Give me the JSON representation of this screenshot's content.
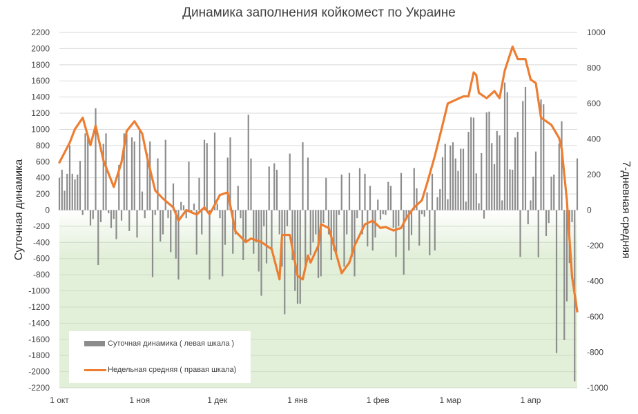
{
  "chart_data": {
    "type": "bar+line",
    "title": "Динамика заполнения койкомест по Украине",
    "ylabel_left": "Суточная динамика",
    "ylabel_right": "7-дневная средняя",
    "ylim_left": [
      -2200,
      2200
    ],
    "ytick_step_left": 200,
    "ylim_right": [
      -1000,
      1000
    ],
    "ytick_step_right": 200,
    "xlim": [
      "10-01",
      "04-19"
    ],
    "x_ticks": [
      {
        "date": "10-01",
        "label": "1 окт"
      },
      {
        "date": "11-01",
        "label": "1 ноя"
      },
      {
        "date": "12-01",
        "label": "1 дек"
      },
      {
        "date": "01-01",
        "label": "1 янв"
      },
      {
        "date": "02-01",
        "label": "1 фев"
      },
      {
        "date": "03-01",
        "label": "1 мар"
      },
      {
        "date": "04-01",
        "label": "1 апр"
      }
    ],
    "grid": true,
    "negative_region_fill": "#e2efd9",
    "legend_position": "bottom-left",
    "series": [
      {
        "name": "Суточная динамика ( левая шкала )",
        "type": "bar",
        "axis": "left",
        "color": "#8c8c8c",
        "start_date": "10-01",
        "values": [
          400,
          500,
          240,
          450,
          800,
          450,
          380,
          440,
          610,
          -60,
          950,
          920,
          -190,
          -110,
          1260,
          -680,
          -150,
          820,
          950,
          -40,
          -220,
          -110,
          -360,
          560,
          -130,
          950,
          940,
          -260,
          900,
          850,
          -340,
          980,
          230,
          -100,
          700,
          850,
          -830,
          -60,
          640,
          -390,
          -300,
          870,
          -100,
          -520,
          330,
          -600,
          -860,
          100,
          60,
          -100,
          600,
          -40,
          80,
          -550,
          400,
          -300,
          870,
          830,
          -860,
          0,
          960,
          80,
          -100,
          -820,
          -430,
          650,
          900,
          -540,
          -300,
          300,
          -100,
          -620,
          -380,
          1180,
          640,
          -540,
          -400,
          -760,
          -1060,
          -200,
          -660,
          540,
          -500,
          580,
          500,
          -300,
          -700,
          -1290,
          -200,
          700,
          -620,
          -1000,
          -1160,
          -1160,
          840,
          -700,
          650,
          -560,
          -400,
          -300,
          -840,
          -820,
          -160,
          400,
          -300,
          -620,
          -500,
          -520,
          -60,
          440,
          -700,
          -300,
          460,
          -580,
          -820,
          -100,
          520,
          -300,
          450,
          -450,
          300,
          -500,
          -340,
          130,
          -120,
          -50,
          -60,
          350,
          300,
          -220,
          -580,
          -200,
          460,
          -800,
          -120,
          -500,
          -310,
          520,
          270,
          -440,
          -50,
          -80,
          220,
          -560,
          450,
          -500,
          160,
          260,
          655,
          820,
          135,
          800,
          840,
          640,
          485,
          760,
          760,
          105,
          970,
          1150,
          1145,
          455,
          85,
          705,
          -105,
          1210,
          1220,
          830,
          570,
          980,
          925,
          120,
          1580,
          1460,
          505,
          500,
          900,
          970,
          -580,
          1350,
          1525,
          -175,
          120,
          415,
          725,
          -585,
          1370,
          1310,
          -320,
          -160,
          415,
          440,
          -1770,
          825,
          1100,
          -1610,
          -1130,
          -655,
          -150,
          -2120,
          640
        ]
      },
      {
        "name": "Недельная средняя ( правая шкала)",
        "type": "line",
        "axis": "right",
        "color": "#ed7d31",
        "points": [
          [
            "10-01",
            268
          ],
          [
            "10-05",
            380
          ],
          [
            "10-07",
            455
          ],
          [
            "10-10",
            520
          ],
          [
            "10-13",
            365
          ],
          [
            "10-15",
            475
          ],
          [
            "10-18",
            280
          ],
          [
            "10-22",
            130
          ],
          [
            "10-25",
            270
          ],
          [
            "10-27",
            445
          ],
          [
            "10-30",
            500
          ],
          [
            "11-02",
            430
          ],
          [
            "11-04",
            290
          ],
          [
            "11-07",
            110
          ],
          [
            "11-10",
            65
          ],
          [
            "11-14",
            15
          ],
          [
            "11-16",
            -60
          ],
          [
            "11-19",
            0
          ],
          [
            "11-23",
            -25
          ],
          [
            "11-26",
            15
          ],
          [
            "11-28",
            -25
          ],
          [
            "12-02",
            85
          ],
          [
            "12-05",
            100
          ],
          [
            "12-08",
            -120
          ],
          [
            "12-12",
            -180
          ],
          [
            "12-14",
            -160
          ],
          [
            "12-18",
            -180
          ],
          [
            "12-22",
            -220
          ],
          [
            "12-25",
            -390
          ],
          [
            "12-26",
            -140
          ],
          [
            "12-29",
            -140
          ],
          [
            "01-01",
            -370
          ],
          [
            "01-03",
            -390
          ],
          [
            "01-05",
            -255
          ],
          [
            "01-06",
            -295
          ],
          [
            "01-09",
            -200
          ],
          [
            "01-10",
            -80
          ],
          [
            "01-13",
            -100
          ],
          [
            "01-15",
            -200
          ],
          [
            "01-18",
            -355
          ],
          [
            "01-21",
            -295
          ],
          [
            "01-23",
            -200
          ],
          [
            "01-27",
            -80
          ],
          [
            "01-30",
            -60
          ],
          [
            "02-02",
            -100
          ],
          [
            "02-04",
            -95
          ],
          [
            "02-07",
            -115
          ],
          [
            "02-10",
            -100
          ],
          [
            "02-12",
            -45
          ],
          [
            "02-15",
            15
          ],
          [
            "02-18",
            55
          ],
          [
            "02-20",
            150
          ],
          [
            "02-23",
            305
          ],
          [
            "02-26",
            480
          ],
          [
            "02-28",
            600
          ],
          [
            "03-03",
            620
          ],
          [
            "03-06",
            640
          ],
          [
            "03-08",
            640
          ],
          [
            "03-10",
            775
          ],
          [
            "03-11",
            760
          ],
          [
            "03-12",
            660
          ],
          [
            "03-15",
            630
          ],
          [
            "03-18",
            670
          ],
          [
            "03-20",
            630
          ],
          [
            "03-22",
            785
          ],
          [
            "03-25",
            920
          ],
          [
            "03-27",
            850
          ],
          [
            "03-30",
            850
          ],
          [
            "04-01",
            735
          ],
          [
            "04-03",
            715
          ],
          [
            "04-05",
            520
          ],
          [
            "04-09",
            480
          ],
          [
            "04-12",
            405
          ],
          [
            "04-13",
            345
          ],
          [
            "04-15",
            55
          ],
          [
            "04-17",
            -375
          ],
          [
            "04-19",
            -570
          ]
        ]
      }
    ]
  }
}
